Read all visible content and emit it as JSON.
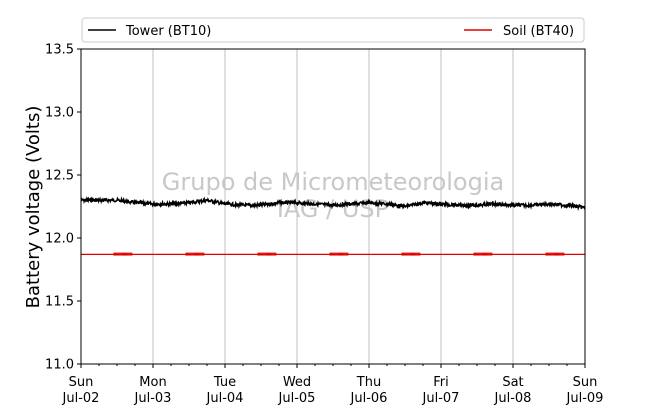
{
  "chart_data": {
    "type": "line",
    "ylabel": "Battery voltage (Volts)",
    "xlabel": "",
    "ylim": [
      11.0,
      13.5
    ],
    "yticks": [
      11.0,
      11.5,
      12.0,
      12.5,
      13.0,
      13.5
    ],
    "ytick_labels": [
      "11.0",
      "11.5",
      "12.0",
      "12.5",
      "13.0",
      "13.5"
    ],
    "xlim": [
      "2023-07-02",
      "2023-07-09"
    ],
    "xticks": [
      {
        "x": "2023-07-02",
        "day": "Sun",
        "date": "Jul-02"
      },
      {
        "x": "2023-07-03",
        "day": "Mon",
        "date": "Jul-03"
      },
      {
        "x": "2023-07-04",
        "day": "Tue",
        "date": "Jul-04"
      },
      {
        "x": "2023-07-05",
        "day": "Wed",
        "date": "Jul-05"
      },
      {
        "x": "2023-07-06",
        "day": "Thu",
        "date": "Jul-06"
      },
      {
        "x": "2023-07-07",
        "day": "Fri",
        "date": "Jul-07"
      },
      {
        "x": "2023-07-08",
        "day": "Sat",
        "date": "Jul-08"
      },
      {
        "x": "2023-07-09",
        "day": "Sun",
        "date": "Jul-09"
      }
    ],
    "grid": "vertical",
    "legend_position": "top",
    "watermark": [
      "Grupo de Micrometeorologia",
      "IAG / USP"
    ],
    "series": [
      {
        "name": "Tower (BT10)",
        "color": "#000000",
        "x": [
          "2023-07-02 00:00",
          "2023-07-02 06:00",
          "2023-07-02 12:00",
          "2023-07-02 18:00",
          "2023-07-03 00:00",
          "2023-07-03 06:00",
          "2023-07-03 12:00",
          "2023-07-03 18:00",
          "2023-07-04 00:00",
          "2023-07-04 06:00",
          "2023-07-04 12:00",
          "2023-07-04 18:00",
          "2023-07-05 00:00",
          "2023-07-05 06:00",
          "2023-07-05 12:00",
          "2023-07-05 18:00",
          "2023-07-06 00:00",
          "2023-07-06 06:00",
          "2023-07-06 12:00",
          "2023-07-06 18:00",
          "2023-07-07 00:00",
          "2023-07-07 06:00",
          "2023-07-07 12:00",
          "2023-07-07 18:00",
          "2023-07-08 00:00",
          "2023-07-08 06:00",
          "2023-07-08 12:00",
          "2023-07-08 18:00",
          "2023-07-09 00:00"
        ],
        "y": [
          12.3,
          12.3,
          12.3,
          12.28,
          12.27,
          12.27,
          12.28,
          12.3,
          12.27,
          12.26,
          12.26,
          12.28,
          12.28,
          12.27,
          12.26,
          12.27,
          12.28,
          12.27,
          12.25,
          12.28,
          12.27,
          12.26,
          12.26,
          12.27,
          12.26,
          12.26,
          12.27,
          12.26,
          12.24
        ]
      },
      {
        "name": "Soil (BT40)",
        "color": "#e00000",
        "x": [
          "2023-07-02 00:00",
          "2023-07-09 00:00"
        ],
        "y": [
          11.87,
          11.87
        ]
      }
    ]
  }
}
